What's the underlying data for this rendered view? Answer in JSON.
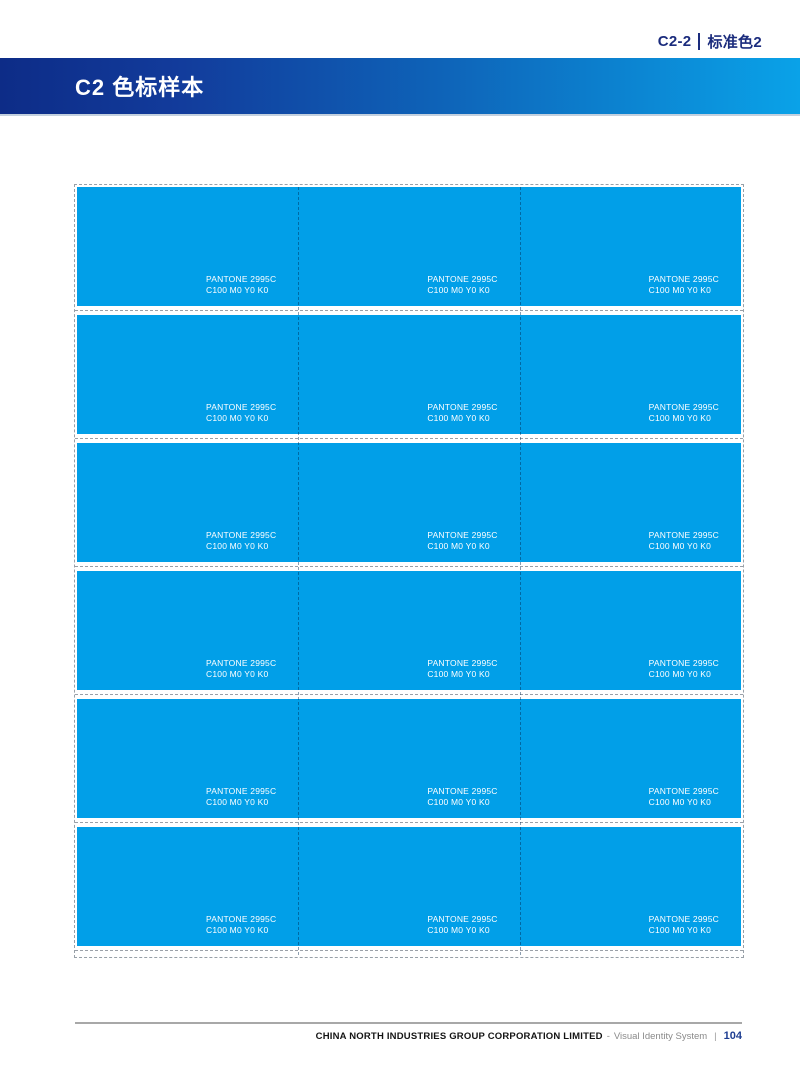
{
  "header_meta": {
    "code": "C2-2",
    "category": "标准色2"
  },
  "header": {
    "title": "C2 色标样本"
  },
  "grid": {
    "rows": 6,
    "cols": 3,
    "swatch_color": "#019FE8",
    "label_line1": "PANTONE 2995C",
    "label_line2": "C100 M0 Y0 K0"
  },
  "footer": {
    "company": "CHINA NORTH INDUSTRIES GROUP CORPORATION LIMITED",
    "separator": "-",
    "system": "Visual Identity System",
    "divider": "|",
    "page_number": "104"
  },
  "colors": {
    "header_gradient_start": "#0D2C87",
    "header_gradient_end": "#0AA2E8",
    "navy_text": "#1B2C7D",
    "page_number_blue": "#1D3D91",
    "swatch_blue": "#019FE8"
  }
}
